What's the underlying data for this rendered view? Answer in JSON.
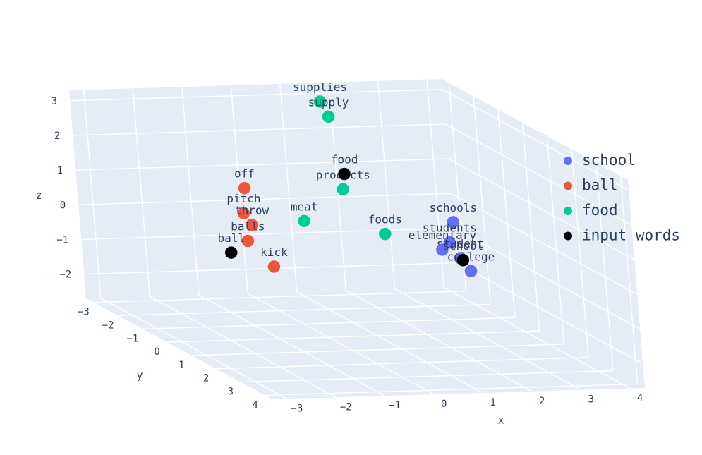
{
  "chart_data": {
    "type": "scatter3d",
    "axes": {
      "x": {
        "title": "x",
        "ticks": [
          "−3",
          "−2",
          "−1",
          "0",
          "1",
          "2",
          "3",
          "4"
        ],
        "range": [
          -3.3,
          4.3
        ]
      },
      "y": {
        "title": "y",
        "ticks": [
          "−3",
          "−2",
          "−1",
          "0",
          "1",
          "2",
          "3",
          "4"
        ],
        "range": [
          -3.3,
          4.3
        ]
      },
      "z": {
        "title": "z",
        "ticks": [
          "−2",
          "−1",
          "0",
          "1",
          "2",
          "3"
        ],
        "range": [
          -2.7,
          3.3
        ]
      }
    },
    "grid": true,
    "legend_position": "right",
    "series": [
      {
        "name": "school",
        "color": "#636efa",
        "points": [
          {
            "x": 3.2,
            "y": -1.0,
            "z": 0.1,
            "label": "schools"
          },
          {
            "x": 3.0,
            "y": -0.8,
            "z": -0.4,
            "label": "students"
          },
          {
            "x": 3.0,
            "y": -0.4,
            "z": -0.7,
            "label": "student"
          },
          {
            "x": 2.6,
            "y": -0.3,
            "z": -0.4,
            "label": "elementary"
          },
          {
            "x": 3.1,
            "y": -0.2,
            "z": -1.0,
            "label": "college"
          }
        ]
      },
      {
        "name": "ball",
        "color": "#ef553b",
        "points": [
          {
            "x": -0.8,
            "y": -1.4,
            "z": 1.1,
            "label": "off"
          },
          {
            "x": -1.0,
            "y": -1.1,
            "z": 0.5,
            "label": "pitch"
          },
          {
            "x": -0.9,
            "y": -1.0,
            "z": 0.2,
            "label": "throw"
          },
          {
            "x": -1.2,
            "y": -0.6,
            "z": -0.1,
            "label": "balls"
          },
          {
            "x": -0.9,
            "y": -0.2,
            "z": -0.7,
            "label": "kick"
          }
        ]
      },
      {
        "name": "food",
        "color": "#00cc96",
        "points": [
          {
            "x": 1.5,
            "y": -2.7,
            "z": 3.0,
            "label": "supplies"
          },
          {
            "x": 1.6,
            "y": -2.6,
            "z": 2.6,
            "label": "supply"
          },
          {
            "x": 1.3,
            "y": -1.6,
            "z": 0.9,
            "label": "products"
          },
          {
            "x": 1.7,
            "y": -0.8,
            "z": -0.1,
            "label": "foods"
          },
          {
            "x": 0.6,
            "y": -1.9,
            "z": -0.1,
            "label": "meat"
          }
        ]
      },
      {
        "name": "input words",
        "color": "#000000",
        "points": [
          {
            "x": 3.1,
            "y": -0.5,
            "z": -0.8,
            "label": "school"
          },
          {
            "x": -1.7,
            "y": -0.3,
            "z": -0.3,
            "label": "ball"
          },
          {
            "x": 1.4,
            "y": -1.7,
            "z": 1.3,
            "label": "food"
          }
        ]
      }
    ]
  }
}
